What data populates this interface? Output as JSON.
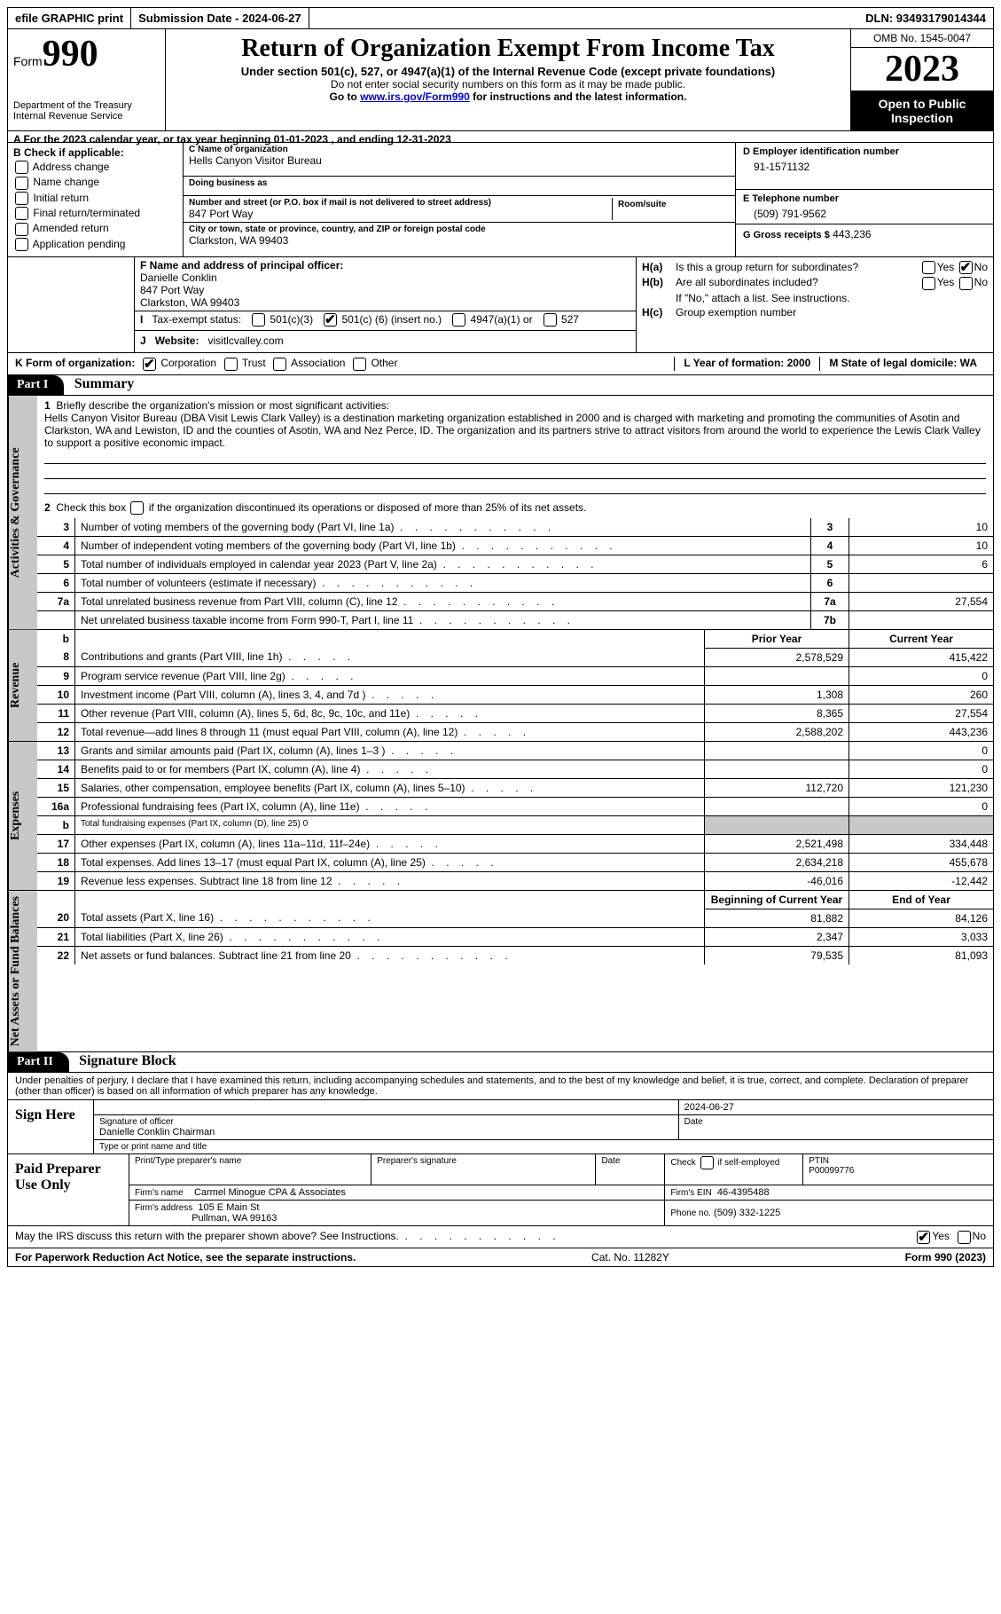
{
  "topbar": {
    "efile": "efile GRAPHIC print",
    "submission": "Submission Date - 2024-06-27",
    "dln": "DLN: 93493179014344"
  },
  "header": {
    "formword": "Form",
    "formnum": "990",
    "dept": "Department of the Treasury\nInternal Revenue Service",
    "title": "Return of Organization Exempt From Income Tax",
    "sub": "Under section 501(c), 527, or 4947(a)(1) of the Internal Revenue Code (except private foundations)",
    "note1": "Do not enter social security numbers on this form as it may be made public.",
    "note2a": "Go to ",
    "note2link": "www.irs.gov/Form990",
    "note2b": " for instructions and the latest information.",
    "omb": "OMB No. 1545-0047",
    "year": "2023",
    "inspection": "Open to Public Inspection"
  },
  "rowA": "A  For the 2023 calendar year, or tax year beginning 01-01-2023    , and ending 12-31-2023",
  "colB": {
    "hdr": "B Check if applicable:",
    "items": [
      "Address change",
      "Name change",
      "Initial return",
      "Final return/terminated",
      "Amended return",
      "Application pending"
    ]
  },
  "colC": {
    "nameLbl": "C Name of organization",
    "name": "Hells Canyon Visitor Bureau",
    "dbaLbl": "Doing business as",
    "dba": "",
    "addrLbl": "Number and street (or P.O. box if mail is not delivered to street address)",
    "addr": "847 Port Way",
    "suiteLbl": "Room/suite",
    "cityLbl": "City or town, state or province, country, and ZIP or foreign postal code",
    "city": "Clarkston, WA  99403"
  },
  "colD": {
    "einLbl": "D Employer identification number",
    "ein": "91-1571132",
    "telLbl": "E Telephone number",
    "tel": "(509) 791-9562",
    "grossLbl": "G Gross receipts $",
    "gross": "443,236"
  },
  "colF": {
    "lbl": "F Name and address of principal officer:",
    "name": "Danielle Conklin",
    "addr1": "847 Port Way",
    "addr2": "Clarkston, WA  99403"
  },
  "taxexempt": {
    "lbl": "Tax-exempt status:",
    "opt1": "501(c)(3)",
    "opt2a": "501(c) (",
    "opt2b": "6",
    "opt2c": ") (insert no.)",
    "opt3": "4947(a)(1) or",
    "opt4": "527"
  },
  "website": {
    "lbl": "Website:",
    "val": "visitlcvalley.com"
  },
  "colH": {
    "ha": "Is this a group return for subordinates?",
    "hb": "Are all subordinates included?",
    "hbnote": "If \"No,\" attach a list. See instructions.",
    "hc": "Group exemption number",
    "yes": "Yes",
    "no": "No"
  },
  "rowK": {
    "lbl": "K Form of organization:",
    "opts": [
      "Corporation",
      "Trust",
      "Association",
      "Other"
    ],
    "L": "L Year of formation: 2000",
    "M": "M State of legal domicile: WA"
  },
  "part1": {
    "hdr": "Part I",
    "title": "Summary",
    "line1lbl": "Briefly describe the organization's mission or most significant activities:",
    "mission": "Hells Canyon Visitor Bureau (DBA Visit Lewis Clark Valley) is a destination marketing organization established in 2000 and is charged with marketing and promoting the communities of Asotin and Clarkston, WA and Lewiston, ID and the counties of Asotin, WA and Nez Perce, ID. The organization and its partners strive to attract visitors from around the world to experience the Lewis Clark Valley to support a positive economic impact.",
    "line2": "Check this box        if the organization discontinued its operations or disposed of more than 25% of its net assets.",
    "sideA": "Activities & Governance",
    "sideR": "Revenue",
    "sideE": "Expenses",
    "sideN": "Net Assets or Fund Balances",
    "rows_gov": [
      {
        "n": "3",
        "d": "Number of voting members of the governing body (Part VI, line 1a)",
        "b": "3",
        "v": "10"
      },
      {
        "n": "4",
        "d": "Number of independent voting members of the governing body (Part VI, line 1b)",
        "b": "4",
        "v": "10"
      },
      {
        "n": "5",
        "d": "Total number of individuals employed in calendar year 2023 (Part V, line 2a)",
        "b": "5",
        "v": "6"
      },
      {
        "n": "6",
        "d": "Total number of volunteers (estimate if necessary)",
        "b": "6",
        "v": ""
      },
      {
        "n": "7a",
        "d": "Total unrelated business revenue from Part VIII, column (C), line 12",
        "b": "7a",
        "v": "27,554"
      },
      {
        "n": "",
        "d": "Net unrelated business taxable income from Form 990-T, Part I, line 11",
        "b": "7b",
        "v": ""
      }
    ],
    "colPrior": "Prior Year",
    "colCurrent": "Current Year",
    "rows_rev": [
      {
        "n": "8",
        "d": "Contributions and grants (Part VIII, line 1h)",
        "p": "2,578,529",
        "c": "415,422"
      },
      {
        "n": "9",
        "d": "Program service revenue (Part VIII, line 2g)",
        "p": "",
        "c": "0"
      },
      {
        "n": "10",
        "d": "Investment income (Part VIII, column (A), lines 3, 4, and 7d )",
        "p": "1,308",
        "c": "260"
      },
      {
        "n": "11",
        "d": "Other revenue (Part VIII, column (A), lines 5, 6d, 8c, 9c, 10c, and 11e)",
        "p": "8,365",
        "c": "27,554"
      },
      {
        "n": "12",
        "d": "Total revenue—add lines 8 through 11 (must equal Part VIII, column (A), line 12)",
        "p": "2,588,202",
        "c": "443,236"
      }
    ],
    "rows_exp": [
      {
        "n": "13",
        "d": "Grants and similar amounts paid (Part IX, column (A), lines 1–3 )",
        "p": "",
        "c": "0"
      },
      {
        "n": "14",
        "d": "Benefits paid to or for members (Part IX, column (A), line 4)",
        "p": "",
        "c": "0"
      },
      {
        "n": "15",
        "d": "Salaries, other compensation, employee benefits (Part IX, column (A), lines 5–10)",
        "p": "112,720",
        "c": "121,230"
      },
      {
        "n": "16a",
        "d": "Professional fundraising fees (Part IX, column (A), line 11e)",
        "p": "",
        "c": "0"
      },
      {
        "n": "b",
        "d": "Total fundraising expenses (Part IX, column (D), line 25) 0",
        "p": "GREY",
        "c": "GREY",
        "small": true
      },
      {
        "n": "17",
        "d": "Other expenses (Part IX, column (A), lines 11a–11d, 11f–24e)",
        "p": "2,521,498",
        "c": "334,448"
      },
      {
        "n": "18",
        "d": "Total expenses. Add lines 13–17 (must equal Part IX, column (A), line 25)",
        "p": "2,634,218",
        "c": "455,678"
      },
      {
        "n": "19",
        "d": "Revenue less expenses. Subtract line 18 from line 12",
        "p": "-46,016",
        "c": "-12,442"
      }
    ],
    "colBeg": "Beginning of Current Year",
    "colEnd": "End of Year",
    "rows_net": [
      {
        "n": "20",
        "d": "Total assets (Part X, line 16)",
        "p": "81,882",
        "c": "84,126"
      },
      {
        "n": "21",
        "d": "Total liabilities (Part X, line 26)",
        "p": "2,347",
        "c": "3,033"
      },
      {
        "n": "22",
        "d": "Net assets or fund balances. Subtract line 21 from line 20",
        "p": "79,535",
        "c": "81,093"
      }
    ]
  },
  "part2": {
    "hdr": "Part II",
    "title": "Signature Block",
    "penalties": "Under penalties of perjury, I declare that I have examined this return, including accompanying schedules and statements, and to the best of my knowledge and belief, it is true, correct, and complete. Declaration of preparer (other than officer) is based on all information of which preparer has any knowledge."
  },
  "sign": {
    "here": "Sign Here",
    "date": "2024-06-27",
    "sigLbl": "Signature of officer",
    "dateLbl": "Date",
    "name": "Danielle Conklin  Chairman",
    "typeLbl": "Type or print name and title"
  },
  "preparer": {
    "here": "Paid Preparer Use Only",
    "col1": "Print/Type preparer's name",
    "col2": "Preparer's signature",
    "col3": "Date",
    "col4a": "Check",
    "col4b": "if self-employed",
    "col5": "PTIN",
    "ptin": "P00099776",
    "firmLbl": "Firm's name",
    "firm": "Carmel Minogue CPA & Associates",
    "firmEinLbl": "Firm's EIN",
    "firmEin": "46-4395488",
    "addrLbl": "Firm's address",
    "addr1": "105 E Main St",
    "addr2": "Pullman, WA  99163",
    "phoneLbl": "Phone no.",
    "phone": "(509) 332-1225"
  },
  "discuss": "May the IRS discuss this return with the preparer shown above? See Instructions.",
  "footer": {
    "pra": "For Paperwork Reduction Act Notice, see the separate instructions.",
    "cat": "Cat. No. 11282Y",
    "form": "Form 990 (2023)"
  }
}
